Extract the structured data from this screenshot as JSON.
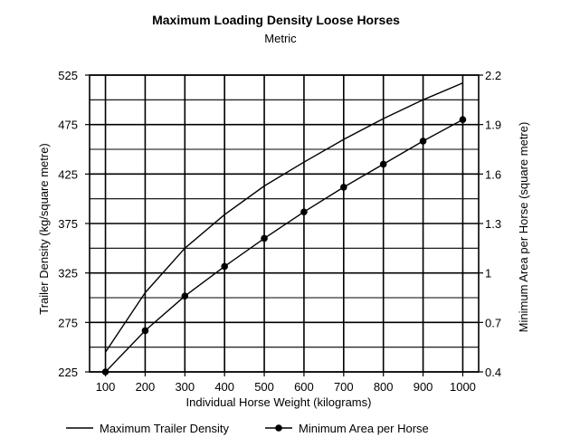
{
  "chart_data": {
    "type": "line",
    "title": "Maximum Loading Density Loose Horses",
    "subtitle": "Metric",
    "xlabel": "Individual Horse Weight (kilograms)",
    "ylabel_left": "Trailer Density (kg/square metre)",
    "ylabel_right": "Minimum Area per Horse (square metre)",
    "x_ticks": [
      100,
      200,
      300,
      400,
      500,
      600,
      700,
      800,
      900,
      1000
    ],
    "x_tick_labels": [
      "100",
      "200",
      "300",
      "400",
      "500",
      "600",
      "700",
      "800",
      "900",
      "1000"
    ],
    "y_left_ticks": [
      225,
      275,
      325,
      375,
      425,
      475,
      525
    ],
    "y_left_tick_labels": [
      "225",
      "275",
      "325",
      "375",
      "425",
      "475",
      "525"
    ],
    "y_right_ticks": [
      0.4,
      0.7,
      1.0,
      1.3,
      1.6,
      1.9,
      2.2
    ],
    "y_right_tick_labels": [
      "0.4",
      "0.7",
      "1",
      "1.3",
      "1.6",
      "1.9",
      "2.2"
    ],
    "xlim": [
      60,
      1040
    ],
    "ylim_left": [
      225,
      525
    ],
    "ylim_right": [
      0.4,
      2.2
    ],
    "grid": true,
    "legend_position": "bottom",
    "series": [
      {
        "name": "Maximum Trailer Density",
        "axis": "left",
        "marker": "none",
        "x": [
          100,
          200,
          300,
          400,
          500,
          600,
          700,
          800,
          900,
          1000
        ],
        "y": [
          245,
          305,
          350,
          384,
          413,
          437,
          460,
          481,
          500,
          517
        ]
      },
      {
        "name": "Minimum Area per Horse",
        "axis": "right",
        "marker": "circle",
        "x": [
          100,
          200,
          300,
          400,
          500,
          600,
          700,
          800,
          900,
          1000
        ],
        "y": [
          0.4,
          0.65,
          0.86,
          1.04,
          1.21,
          1.37,
          1.52,
          1.66,
          1.8,
          1.93
        ]
      }
    ]
  }
}
